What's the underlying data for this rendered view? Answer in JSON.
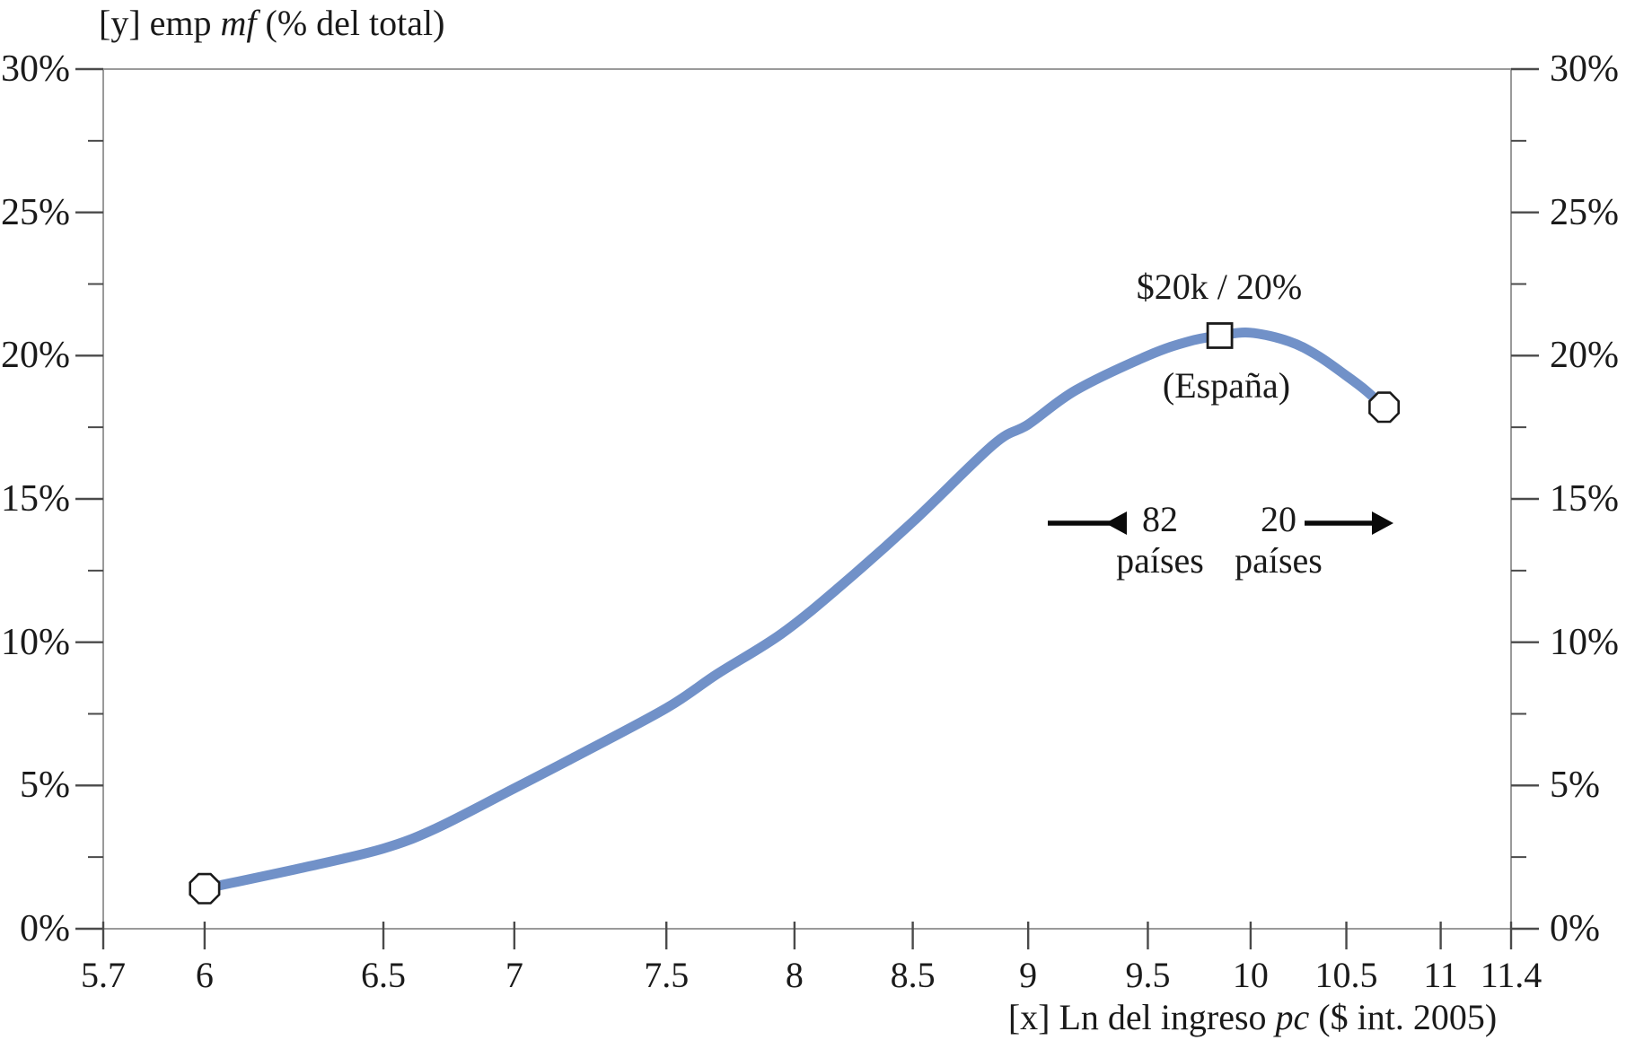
{
  "figure": {
    "background": "#ffffff",
    "text_color": "#1a1a1a"
  },
  "chart_data": {
    "type": "line",
    "y_title": {
      "prefix": "[y] emp ",
      "italic": "mf",
      "suffix": " (% del total)"
    },
    "x_title": {
      "prefix": "[x] Ln del ingreso ",
      "italic": "pc",
      "suffix": " ($ int. 2005)"
    },
    "x_axis": {
      "range": [
        5.7,
        11.4
      ],
      "ticks": [
        {
          "value": 5.7,
          "label": "5.7",
          "pos": 0.0
        },
        {
          "value": 6,
          "label": "6",
          "pos": 0.072
        },
        {
          "value": 6.5,
          "label": "6.5",
          "pos": 0.199
        },
        {
          "value": 7,
          "label": "7",
          "pos": 0.292
        },
        {
          "value": 7.5,
          "label": "7.5",
          "pos": 0.4
        },
        {
          "value": 8,
          "label": "8",
          "pos": 0.491
        },
        {
          "value": 8.5,
          "label": "8.5",
          "pos": 0.575
        },
        {
          "value": 9,
          "label": "9",
          "pos": 0.657
        },
        {
          "value": 9.5,
          "label": "9.5",
          "pos": 0.742
        },
        {
          "value": 10,
          "label": "10",
          "pos": 0.815
        },
        {
          "value": 10.5,
          "label": "10.5",
          "pos": 0.883
        },
        {
          "value": 11,
          "label": "11",
          "pos": 0.95
        },
        {
          "value": 11.4,
          "label": "11.4",
          "pos": 1.0
        }
      ]
    },
    "y_axis": {
      "range": [
        0,
        30
      ],
      "major_ticks": [
        {
          "value": 0,
          "label": "0%"
        },
        {
          "value": 5,
          "label": "5%"
        },
        {
          "value": 10,
          "label": "10%"
        },
        {
          "value": 15,
          "label": "15%"
        },
        {
          "value": 20,
          "label": "20%"
        },
        {
          "value": 25,
          "label": "25%"
        },
        {
          "value": 30,
          "label": "30%"
        }
      ],
      "minor_tick_values": [
        2.5,
        7.5,
        12.5,
        17.5,
        22.5,
        27.5
      ],
      "labels_both_sides": true,
      "grid": false
    },
    "series": [
      {
        "name": "emp mf (% del total)",
        "color": "#7191C8",
        "stroke_width": 11,
        "points": [
          [
            6.0,
            1.4
          ],
          [
            6.3,
            2.2
          ],
          [
            6.5,
            2.8
          ],
          [
            6.7,
            3.5
          ],
          [
            7.0,
            4.9
          ],
          [
            7.2,
            6.0
          ],
          [
            7.5,
            7.7
          ],
          [
            7.7,
            8.9
          ],
          [
            7.95,
            10.3
          ],
          [
            8.2,
            12.0
          ],
          [
            8.5,
            14.2
          ],
          [
            8.85,
            16.9
          ],
          [
            9.0,
            17.6
          ],
          [
            9.2,
            18.8
          ],
          [
            9.5,
            20.0
          ],
          [
            9.7,
            20.5
          ],
          [
            9.85,
            20.7
          ],
          [
            10.0,
            20.8
          ],
          [
            10.2,
            20.5
          ],
          [
            10.35,
            20.0
          ],
          [
            10.5,
            19.3
          ],
          [
            10.6,
            18.8
          ],
          [
            10.7,
            18.2
          ]
        ]
      }
    ],
    "markers": [
      {
        "shape": "octagon",
        "x": 6.0,
        "y": 1.4
      },
      {
        "shape": "square",
        "x": 9.85,
        "y": 20.7
      },
      {
        "shape": "octagon",
        "x": 10.7,
        "y": 18.2
      }
    ],
    "annotations": {
      "peak_label": "$20k / 20%",
      "country_label": "(España)",
      "left_group": {
        "line1": "82",
        "line2": "países"
      },
      "right_group": {
        "line1": "20",
        "line2": "países"
      }
    },
    "colors": {
      "frame": "#9a9a9a",
      "tick": "#4a4a4a",
      "arrow": "#0a0a0a",
      "marker_stroke": "#1a1a1a",
      "marker_fill": "#ffffff"
    }
  }
}
